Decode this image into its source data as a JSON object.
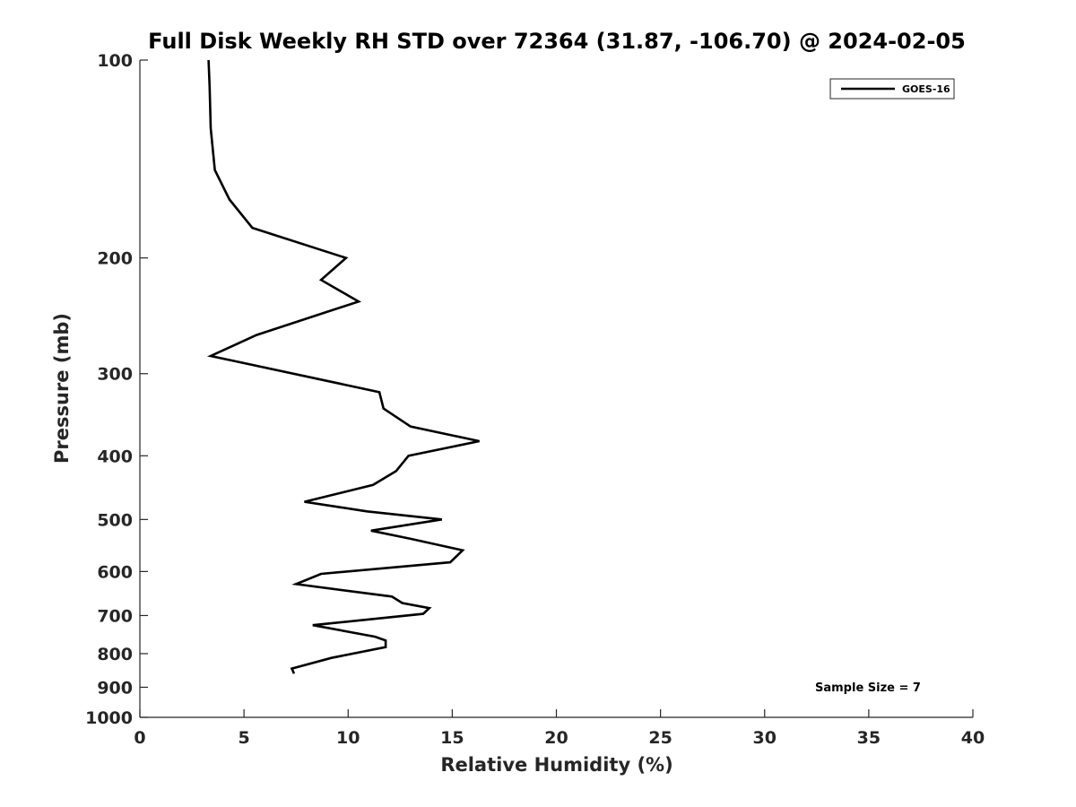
{
  "chart_data": {
    "type": "line",
    "title": "Full Disk Weekly RH STD over 72364 (31.87, -106.70) @ 2024-02-05",
    "xlabel": "Relative Humidity (%)",
    "ylabel": "Pressure (mb)",
    "xlim": [
      0,
      40
    ],
    "ylim": [
      1000,
      100
    ],
    "yscale": "log",
    "y_reversed": true,
    "xticks": [
      0,
      5,
      10,
      15,
      20,
      25,
      30,
      35,
      40
    ],
    "yticks": [
      100,
      200,
      300,
      400,
      500,
      600,
      700,
      800,
      900,
      1000
    ],
    "grid": false,
    "legend": {
      "position": "top-right",
      "entries": [
        "GOES-16"
      ]
    },
    "annotation": "Sample Size = 7",
    "series": [
      {
        "name": "GOES-16",
        "color": "#000000",
        "x": [
          3.3,
          3.35,
          3.4,
          3.6,
          4.3,
          5.4,
          9.9,
          8.7,
          10.5,
          5.6,
          3.4,
          11.5,
          11.7,
          13.0,
          16.3,
          12.9,
          12.3,
          11.2,
          7.9,
          10.9,
          14.5,
          11.1,
          13.0,
          15.5,
          14.9,
          8.7,
          7.5,
          12.1,
          12.6,
          13.9,
          13.6,
          8.3,
          11.3,
          11.8,
          11.8,
          9.2,
          7.3,
          7.4
        ],
        "y": [
          100,
          110,
          127,
          147,
          163,
          180,
          200,
          216,
          233,
          262,
          282,
          320,
          339,
          361,
          380,
          400,
          422,
          443,
          470,
          486,
          500,
          520,
          535,
          557,
          581,
          605,
          627,
          655,
          670,
          682,
          696,
          724,
          754,
          764,
          782,
          812,
          843,
          858
        ]
      }
    ]
  }
}
